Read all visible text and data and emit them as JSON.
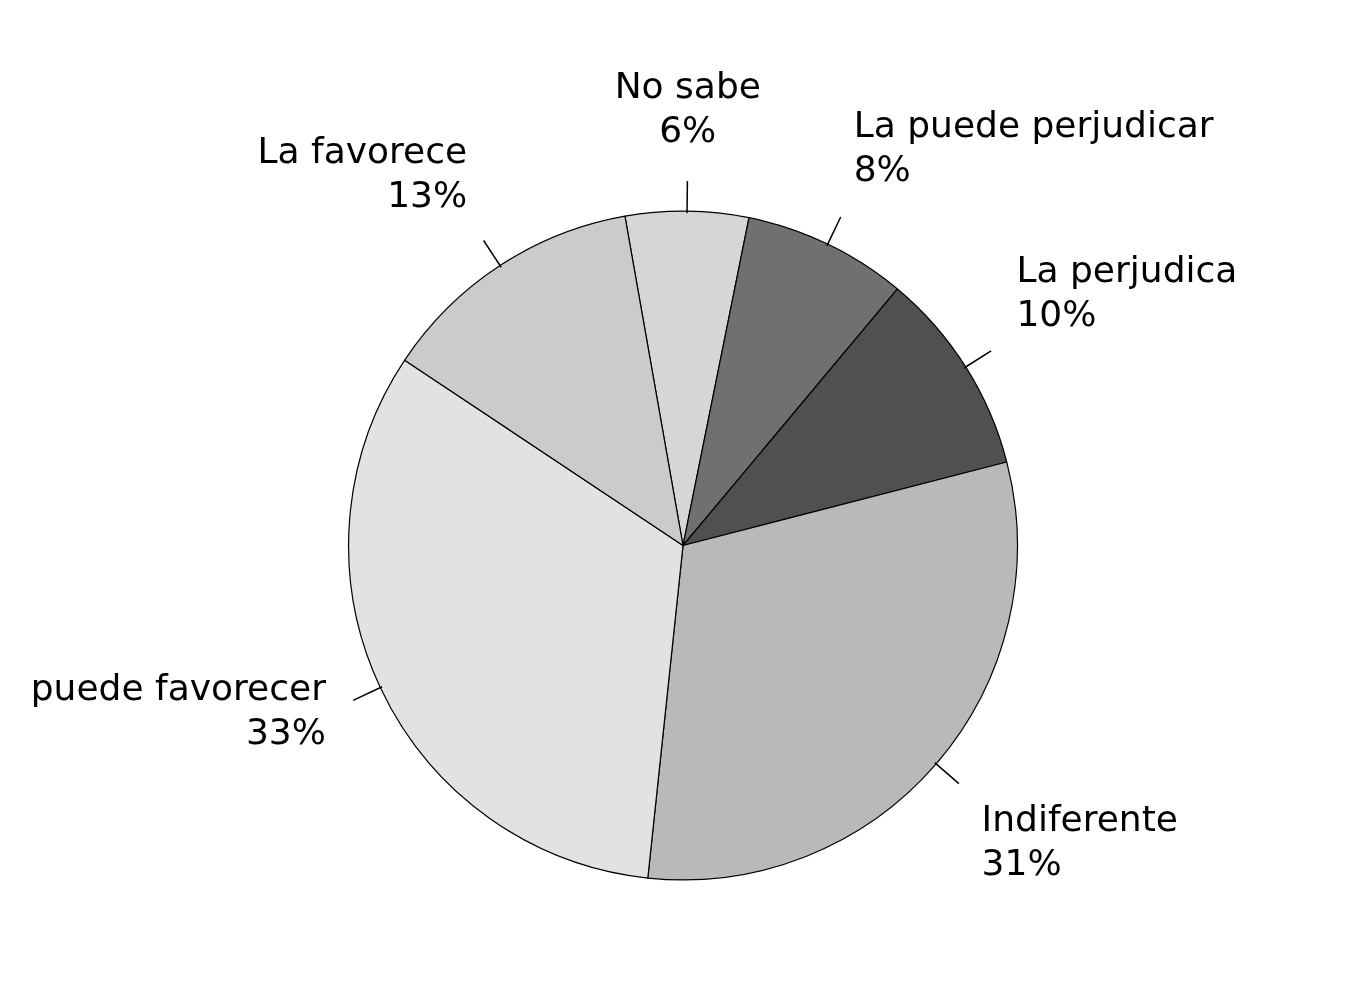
{
  "chart_data": {
    "type": "pie",
    "categories": [
      "No sabe",
      "La puede perjudicar",
      "La perjudica",
      "Indiferente",
      "puede favorecer",
      "La favorece"
    ],
    "values": [
      6,
      8,
      10,
      31,
      33,
      13
    ],
    "value_labels": [
      "6%",
      "8%",
      "10%",
      "31%",
      "33%",
      "13%"
    ],
    "colors": [
      "#d6d6d6",
      "#707070",
      "#505050",
      "#b9b9b9",
      "#e2e2e2",
      "#cbcbcb"
    ],
    "legend": false
  }
}
